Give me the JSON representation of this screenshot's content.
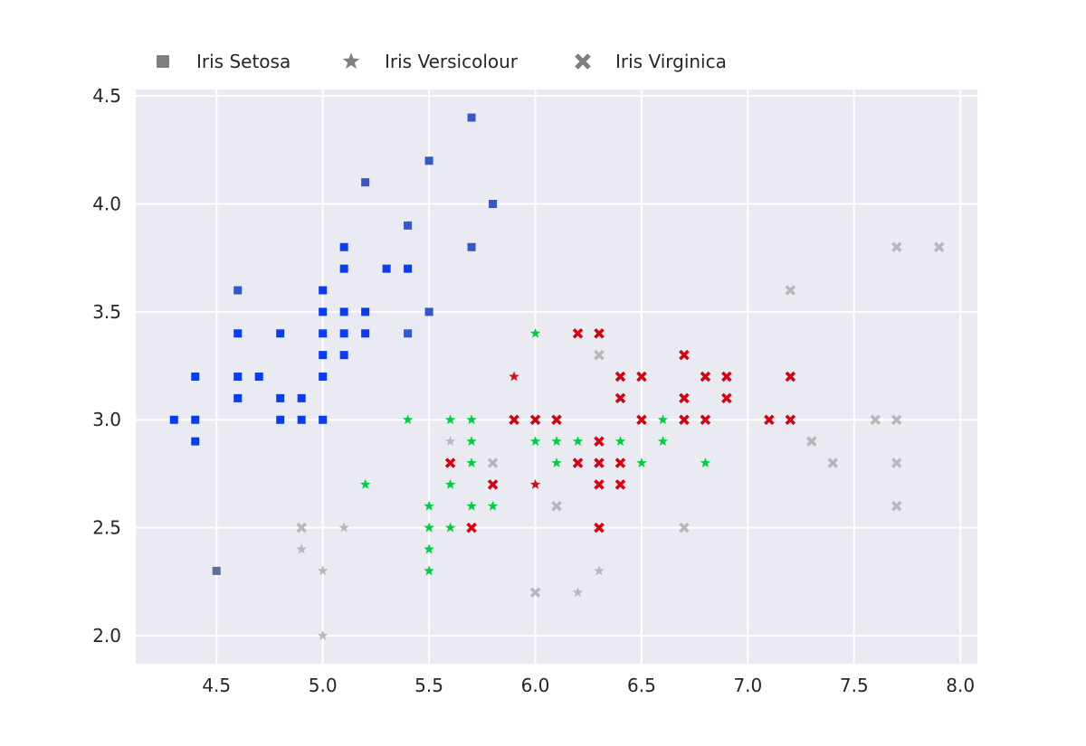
{
  "chart_data": {
    "type": "scatter",
    "title": "",
    "xlabel": "",
    "ylabel": "",
    "xlim": [
      4.12,
      8.08
    ],
    "ylim": [
      1.87,
      4.53
    ],
    "grid": true,
    "legend_placement": "top-left, above plot",
    "x_ticks": [
      "4.5",
      "5.0",
      "5.5",
      "6.0",
      "6.5",
      "7.0",
      "7.5",
      "8.0"
    ],
    "y_ticks": [
      "2.0",
      "2.5",
      "3.0",
      "3.5",
      "4.0",
      "4.5"
    ],
    "colors": {
      "plot_background": "#eaeaf2",
      "grid": "#ffffff",
      "legend_marker": "#808080",
      "setosa_strong": "#0a3cf0",
      "setosa_pale": "#3358c8",
      "setosa_faint": "#5a6e9e",
      "versicolour_strong": "#00d040",
      "versicolour_other": "#d0101a",
      "versicolour_pale": "#b8b8b8",
      "virginica_strong": "#d80010",
      "virginica_pale": "#b8b8b8"
    },
    "series": [
      {
        "name": "Iris Setosa",
        "marker": "square",
        "points": [
          {
            "x": 5.7,
            "y": 4.4,
            "shade": "pale"
          },
          {
            "x": 5.5,
            "y": 4.2,
            "shade": "pale"
          },
          {
            "x": 5.2,
            "y": 4.1,
            "shade": "pale"
          },
          {
            "x": 5.8,
            "y": 4.0,
            "shade": "pale"
          },
          {
            "x": 5.4,
            "y": 3.9,
            "shade": "pale"
          },
          {
            "x": 5.1,
            "y": 3.8,
            "shade": "strong"
          },
          {
            "x": 5.7,
            "y": 3.8,
            "shade": "pale"
          },
          {
            "x": 5.1,
            "y": 3.7,
            "shade": "strong"
          },
          {
            "x": 5.3,
            "y": 3.7,
            "shade": "strong"
          },
          {
            "x": 5.4,
            "y": 3.7,
            "shade": "strong"
          },
          {
            "x": 4.6,
            "y": 3.6,
            "shade": "pale"
          },
          {
            "x": 5.0,
            "y": 3.6,
            "shade": "strong"
          },
          {
            "x": 5.0,
            "y": 3.5,
            "shade": "strong"
          },
          {
            "x": 5.1,
            "y": 3.5,
            "shade": "strong"
          },
          {
            "x": 5.2,
            "y": 3.5,
            "shade": "strong"
          },
          {
            "x": 5.5,
            "y": 3.5,
            "shade": "pale"
          },
          {
            "x": 4.6,
            "y": 3.4,
            "shade": "strong"
          },
          {
            "x": 4.8,
            "y": 3.4,
            "shade": "strong"
          },
          {
            "x": 5.0,
            "y": 3.4,
            "shade": "strong"
          },
          {
            "x": 5.1,
            "y": 3.4,
            "shade": "strong"
          },
          {
            "x": 5.2,
            "y": 3.4,
            "shade": "strong"
          },
          {
            "x": 5.4,
            "y": 3.4,
            "shade": "pale"
          },
          {
            "x": 5.0,
            "y": 3.3,
            "shade": "strong"
          },
          {
            "x": 5.1,
            "y": 3.3,
            "shade": "strong"
          },
          {
            "x": 4.4,
            "y": 3.2,
            "shade": "strong"
          },
          {
            "x": 4.6,
            "y": 3.2,
            "shade": "strong"
          },
          {
            "x": 4.7,
            "y": 3.2,
            "shade": "strong"
          },
          {
            "x": 5.0,
            "y": 3.2,
            "shade": "strong"
          },
          {
            "x": 4.6,
            "y": 3.1,
            "shade": "strong"
          },
          {
            "x": 4.8,
            "y": 3.1,
            "shade": "strong"
          },
          {
            "x": 4.9,
            "y": 3.1,
            "shade": "strong"
          },
          {
            "x": 4.3,
            "y": 3.0,
            "shade": "strong"
          },
          {
            "x": 4.4,
            "y": 3.0,
            "shade": "strong"
          },
          {
            "x": 4.8,
            "y": 3.0,
            "shade": "strong"
          },
          {
            "x": 4.9,
            "y": 3.0,
            "shade": "strong"
          },
          {
            "x": 5.0,
            "y": 3.0,
            "shade": "strong"
          },
          {
            "x": 4.4,
            "y": 2.9,
            "shade": "strong"
          },
          {
            "x": 4.5,
            "y": 2.3,
            "shade": "faint"
          }
        ]
      },
      {
        "name": "Iris Versicolour",
        "marker": "star",
        "points": [
          {
            "x": 6.0,
            "y": 3.4,
            "shade": "strong"
          },
          {
            "x": 5.9,
            "y": 3.2,
            "shade": "other"
          },
          {
            "x": 5.4,
            "y": 3.0,
            "shade": "strong"
          },
          {
            "x": 5.6,
            "y": 3.0,
            "shade": "strong"
          },
          {
            "x": 5.7,
            "y": 3.0,
            "shade": "strong"
          },
          {
            "x": 6.6,
            "y": 3.0,
            "shade": "strong"
          },
          {
            "x": 5.6,
            "y": 2.9,
            "shade": "pale"
          },
          {
            "x": 5.7,
            "y": 2.9,
            "shade": "strong"
          },
          {
            "x": 6.0,
            "y": 2.9,
            "shade": "strong"
          },
          {
            "x": 6.1,
            "y": 2.9,
            "shade": "strong"
          },
          {
            "x": 6.2,
            "y": 2.9,
            "shade": "strong"
          },
          {
            "x": 6.4,
            "y": 2.9,
            "shade": "strong"
          },
          {
            "x": 6.6,
            "y": 2.9,
            "shade": "strong"
          },
          {
            "x": 5.7,
            "y": 2.8,
            "shade": "strong"
          },
          {
            "x": 6.1,
            "y": 2.8,
            "shade": "strong"
          },
          {
            "x": 6.5,
            "y": 2.8,
            "shade": "strong"
          },
          {
            "x": 6.8,
            "y": 2.8,
            "shade": "strong"
          },
          {
            "x": 5.2,
            "y": 2.7,
            "shade": "strong"
          },
          {
            "x": 5.6,
            "y": 2.7,
            "shade": "strong"
          },
          {
            "x": 6.0,
            "y": 2.7,
            "shade": "other"
          },
          {
            "x": 5.5,
            "y": 2.6,
            "shade": "strong"
          },
          {
            "x": 5.7,
            "y": 2.6,
            "shade": "strong"
          },
          {
            "x": 5.8,
            "y": 2.6,
            "shade": "strong"
          },
          {
            "x": 5.1,
            "y": 2.5,
            "shade": "pale"
          },
          {
            "x": 5.5,
            "y": 2.5,
            "shade": "strong"
          },
          {
            "x": 5.6,
            "y": 2.5,
            "shade": "strong"
          },
          {
            "x": 4.9,
            "y": 2.4,
            "shade": "pale"
          },
          {
            "x": 5.5,
            "y": 2.4,
            "shade": "strong"
          },
          {
            "x": 5.0,
            "y": 2.3,
            "shade": "pale"
          },
          {
            "x": 5.5,
            "y": 2.3,
            "shade": "strong"
          },
          {
            "x": 6.3,
            "y": 2.3,
            "shade": "pale"
          },
          {
            "x": 6.2,
            "y": 2.2,
            "shade": "pale"
          },
          {
            "x": 5.0,
            "y": 2.0,
            "shade": "pale"
          }
        ]
      },
      {
        "name": "Iris Virginica",
        "marker": "x",
        "points": [
          {
            "x": 7.7,
            "y": 3.8,
            "shade": "pale"
          },
          {
            "x": 7.9,
            "y": 3.8,
            "shade": "pale"
          },
          {
            "x": 7.2,
            "y": 3.6,
            "shade": "pale"
          },
          {
            "x": 6.2,
            "y": 3.4,
            "shade": "strong"
          },
          {
            "x": 6.3,
            "y": 3.4,
            "shade": "strong"
          },
          {
            "x": 6.3,
            "y": 3.3,
            "shade": "pale"
          },
          {
            "x": 6.7,
            "y": 3.3,
            "shade": "strong"
          },
          {
            "x": 6.4,
            "y": 3.2,
            "shade": "strong"
          },
          {
            "x": 6.5,
            "y": 3.2,
            "shade": "strong"
          },
          {
            "x": 6.8,
            "y": 3.2,
            "shade": "strong"
          },
          {
            "x": 6.9,
            "y": 3.2,
            "shade": "strong"
          },
          {
            "x": 7.2,
            "y": 3.2,
            "shade": "strong"
          },
          {
            "x": 6.4,
            "y": 3.1,
            "shade": "strong"
          },
          {
            "x": 6.7,
            "y": 3.1,
            "shade": "strong"
          },
          {
            "x": 6.9,
            "y": 3.1,
            "shade": "strong"
          },
          {
            "x": 5.9,
            "y": 3.0,
            "shade": "strong"
          },
          {
            "x": 6.0,
            "y": 3.0,
            "shade": "strong"
          },
          {
            "x": 6.1,
            "y": 3.0,
            "shade": "strong"
          },
          {
            "x": 6.5,
            "y": 3.0,
            "shade": "strong"
          },
          {
            "x": 6.7,
            "y": 3.0,
            "shade": "strong"
          },
          {
            "x": 6.8,
            "y": 3.0,
            "shade": "strong"
          },
          {
            "x": 7.1,
            "y": 3.0,
            "shade": "strong"
          },
          {
            "x": 7.2,
            "y": 3.0,
            "shade": "strong"
          },
          {
            "x": 7.6,
            "y": 3.0,
            "shade": "pale"
          },
          {
            "x": 7.7,
            "y": 3.0,
            "shade": "pale"
          },
          {
            "x": 6.3,
            "y": 2.9,
            "shade": "strong"
          },
          {
            "x": 7.3,
            "y": 2.9,
            "shade": "pale"
          },
          {
            "x": 5.6,
            "y": 2.8,
            "shade": "strong"
          },
          {
            "x": 5.8,
            "y": 2.8,
            "shade": "pale"
          },
          {
            "x": 6.2,
            "y": 2.8,
            "shade": "strong"
          },
          {
            "x": 6.3,
            "y": 2.8,
            "shade": "strong"
          },
          {
            "x": 6.4,
            "y": 2.8,
            "shade": "strong"
          },
          {
            "x": 7.4,
            "y": 2.8,
            "shade": "pale"
          },
          {
            "x": 7.7,
            "y": 2.8,
            "shade": "pale"
          },
          {
            "x": 5.8,
            "y": 2.7,
            "shade": "strong"
          },
          {
            "x": 6.3,
            "y": 2.7,
            "shade": "strong"
          },
          {
            "x": 6.4,
            "y": 2.7,
            "shade": "strong"
          },
          {
            "x": 6.1,
            "y": 2.6,
            "shade": "pale"
          },
          {
            "x": 7.7,
            "y": 2.6,
            "shade": "pale"
          },
          {
            "x": 4.9,
            "y": 2.5,
            "shade": "pale"
          },
          {
            "x": 5.7,
            "y": 2.5,
            "shade": "strong"
          },
          {
            "x": 6.3,
            "y": 2.5,
            "shade": "strong"
          },
          {
            "x": 6.7,
            "y": 2.5,
            "shade": "pale"
          },
          {
            "x": 6.0,
            "y": 2.2,
            "shade": "pale"
          }
        ]
      }
    ]
  }
}
